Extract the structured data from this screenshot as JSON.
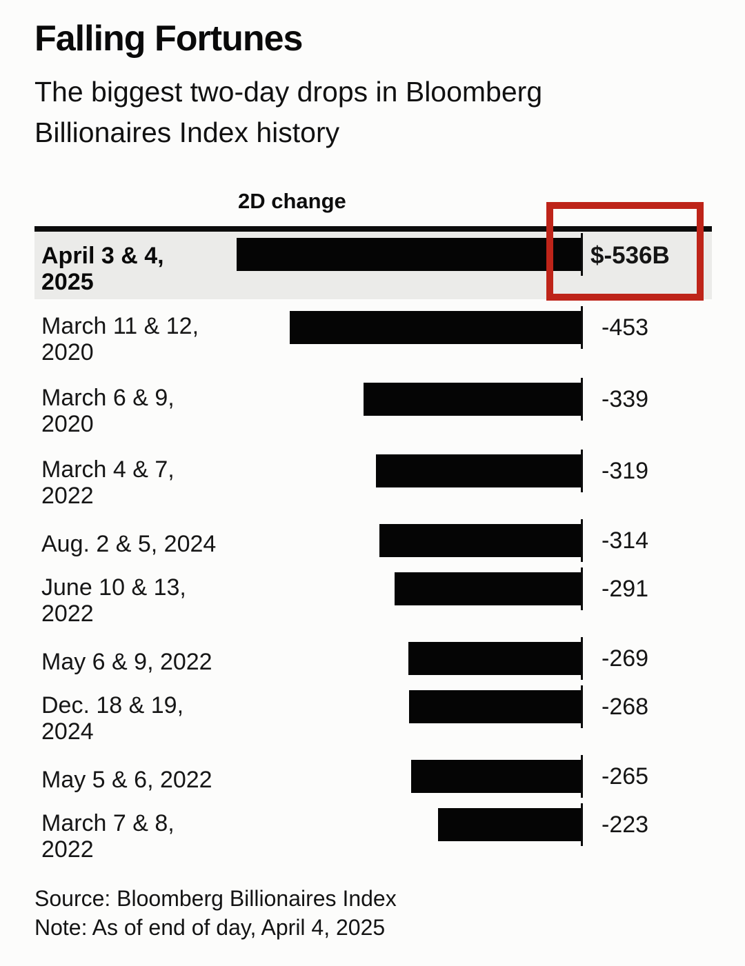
{
  "title": "Falling Fortunes",
  "subtitle_lines": [
    "The biggest two-day drops in Bloomberg",
    "Billionaires Index history"
  ],
  "column_header": "2D change",
  "source": "Source: Bloomberg Billionaires Index",
  "note": "Note: As of end of day, April 4, 2025",
  "colors": {
    "bar": "#050505",
    "highlight_row_background": "#ebebe9",
    "annotation_red": "#be2419",
    "rule_black": "#0c0c0c",
    "page_background": "#fcfcfb"
  },
  "chart_data": {
    "type": "bar",
    "orientation": "horizontal",
    "title": "Falling Fortunes",
    "subtitle": "The biggest two-day drops in Bloomberg Billionaires Index history",
    "value_column_header": "2D change",
    "unit": "billions of US dollars",
    "xlim": [
      -536,
      0
    ],
    "grid": false,
    "legend": false,
    "categories": [
      "April 3 & 4, 2025",
      "March 11 & 12, 2020",
      "March 6 & 9, 2020",
      "March 4 & 7, 2022",
      "Aug. 2 & 5, 2024",
      "June 10 & 13, 2022",
      "May 6 & 9, 2022",
      "Dec. 18 & 19, 2024",
      "May 5 & 6, 2022",
      "March 7 & 8, 2022"
    ],
    "values": [
      -536,
      -453,
      -339,
      -319,
      -314,
      -291,
      -269,
      -268,
      -265,
      -223
    ],
    "value_labels": [
      "$-536B",
      "-453",
      "-339",
      "-319",
      "-314",
      "-291",
      "-269",
      "-268",
      "-265",
      "-223"
    ],
    "highlighted_category": "April 3 & 4, 2025",
    "annotation": "red rectangle drawn around the $-536B value of the highlighted top row",
    "rows": [
      {
        "label_lines": [
          "April 3 & 4,",
          "2025"
        ],
        "value": -536,
        "display": "$-536B",
        "highlight": true
      },
      {
        "label_lines": [
          "March 11 & 12,",
          "2020"
        ],
        "value": -453,
        "display": "-453",
        "highlight": false
      },
      {
        "label_lines": [
          "March 6 & 9,",
          "2020"
        ],
        "value": -339,
        "display": "-339",
        "highlight": false
      },
      {
        "label_lines": [
          "March 4 & 7,",
          "2022"
        ],
        "value": -319,
        "display": "-319",
        "highlight": false
      },
      {
        "label_lines": [
          "Aug. 2 & 5, 2024"
        ],
        "value": -314,
        "display": "-314",
        "highlight": false
      },
      {
        "label_lines": [
          "June 10 & 13,",
          "2022"
        ],
        "value": -291,
        "display": "-291",
        "highlight": false
      },
      {
        "label_lines": [
          "May 6 & 9, 2022"
        ],
        "value": -269,
        "display": "-269",
        "highlight": false
      },
      {
        "label_lines": [
          "Dec. 18 & 19,",
          "2024"
        ],
        "value": -268,
        "display": "-268",
        "highlight": false
      },
      {
        "label_lines": [
          "May 5 & 6, 2022"
        ],
        "value": -265,
        "display": "-265",
        "highlight": false
      },
      {
        "label_lines": [
          "March 7 & 8,",
          "2022"
        ],
        "value": -223,
        "display": "-223",
        "highlight": false
      }
    ]
  }
}
